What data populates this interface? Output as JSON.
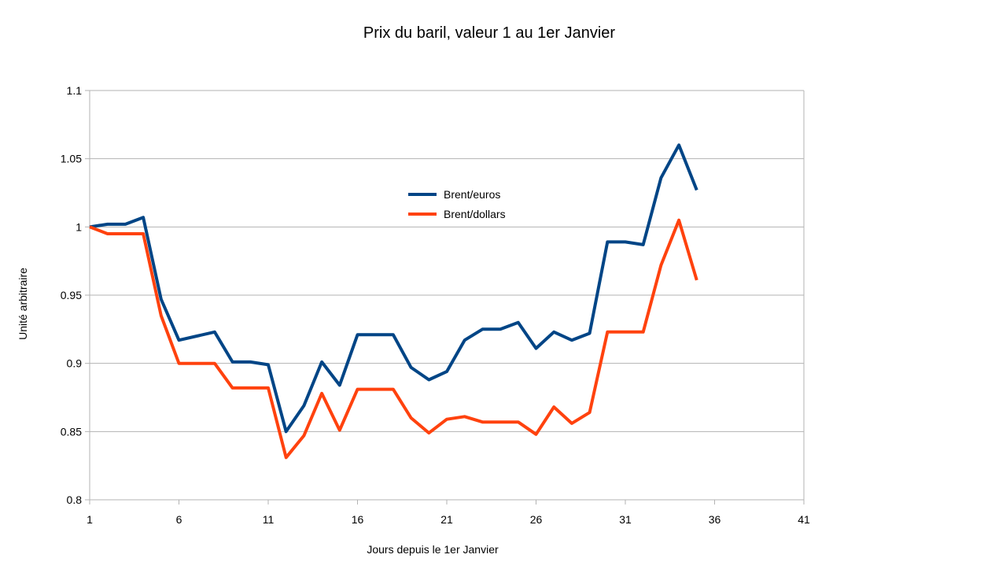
{
  "chart_data": {
    "type": "line",
    "title": "Prix du baril, valeur 1 au 1er Janvier",
    "xlabel": "Jours depuis le 1er Janvier",
    "ylabel": "Unité arbitraire",
    "xlim": [
      1,
      41
    ],
    "ylim": [
      0.8,
      1.1
    ],
    "x_ticks": [
      1,
      6,
      11,
      16,
      21,
      26,
      31,
      36,
      41
    ],
    "x_tick_labels": [
      "1",
      "6",
      "11",
      "16",
      "21",
      "26",
      "31",
      "36",
      "41"
    ],
    "y_ticks": [
      0.8,
      0.85,
      0.9,
      0.95,
      1.0,
      1.05,
      1.1
    ],
    "y_tick_labels": [
      "0.8",
      "0.85",
      "0.9",
      "0.95",
      "1",
      "1.05",
      "1.1"
    ],
    "grid": "horizontal",
    "legend_position": "inside-top-center",
    "x": [
      1,
      2,
      3,
      4,
      5,
      6,
      7,
      8,
      9,
      10,
      11,
      12,
      13,
      14,
      15,
      16,
      17,
      18,
      19,
      20,
      21,
      22,
      23,
      24,
      25,
      26,
      27,
      28,
      29,
      30,
      31,
      32,
      33,
      34,
      35
    ],
    "series": [
      {
        "name": "Brent/euros",
        "color": "#004586",
        "values": [
          1.0,
          1.002,
          1.002,
          1.007,
          0.947,
          0.917,
          0.92,
          0.923,
          0.901,
          0.901,
          0.899,
          0.85,
          0.869,
          0.901,
          0.884,
          0.921,
          0.921,
          0.921,
          0.897,
          0.888,
          0.894,
          0.917,
          0.925,
          0.925,
          0.93,
          0.911,
          0.923,
          0.917,
          0.922,
          0.989,
          0.989,
          0.987,
          1.036,
          1.06,
          1.027
        ]
      },
      {
        "name": "Brent/dollars",
        "color": "#ff420e",
        "values": [
          1.0,
          0.995,
          0.995,
          0.995,
          0.935,
          0.9,
          0.9,
          0.9,
          0.882,
          0.882,
          0.882,
          0.831,
          0.847,
          0.878,
          0.851,
          0.881,
          0.881,
          0.881,
          0.86,
          0.849,
          0.859,
          0.861,
          0.857,
          0.857,
          0.857,
          0.848,
          0.868,
          0.856,
          0.864,
          0.923,
          0.923,
          0.923,
          0.972,
          1.005,
          0.961
        ]
      }
    ]
  }
}
